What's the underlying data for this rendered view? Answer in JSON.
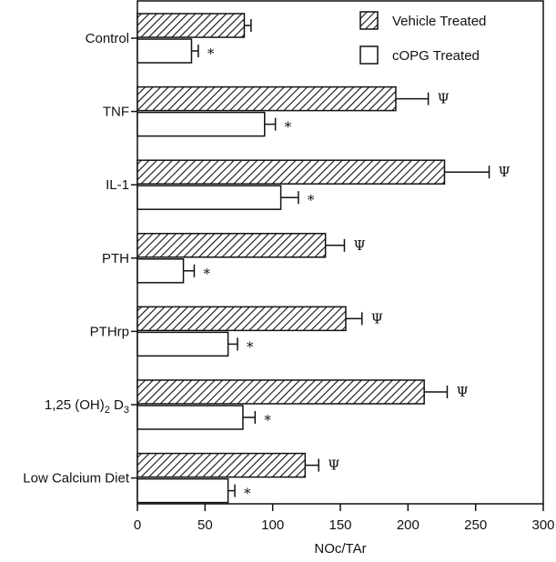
{
  "chart_data": {
    "type": "bar",
    "orientation": "horizontal",
    "categories": [
      "Control",
      "TNF",
      "IL-1",
      "PTH",
      "PTHrp",
      "1,25 (OH)2 D3",
      "Low Calcium Diet"
    ],
    "category_parts": {
      "5": {
        "main": "1,25 (OH)",
        "sub1": "2",
        "mid": " D",
        "sub2": "3"
      }
    },
    "series": [
      {
        "name": "Vehicle Treated",
        "fill": "hatched",
        "values": [
          79,
          191,
          227,
          139,
          154,
          212,
          124
        ],
        "errors": [
          5,
          24,
          33,
          14,
          12,
          17,
          10
        ],
        "markers": [
          "",
          "Ψ",
          "Ψ",
          "Ψ",
          "Ψ",
          "Ψ",
          "Ψ"
        ]
      },
      {
        "name": "cOPG Treated",
        "fill": "open",
        "values": [
          40,
          94,
          106,
          34,
          67,
          78,
          67
        ],
        "errors": [
          5,
          8,
          13,
          8,
          7,
          9,
          5
        ],
        "markers": [
          "*",
          "*",
          "*",
          "*",
          "*",
          "*",
          "*"
        ]
      }
    ],
    "xlabel": "NOc/TAr",
    "ylabel": "",
    "xlim": [
      0,
      300
    ],
    "xticks": [
      0,
      50,
      100,
      150,
      200,
      250,
      300
    ],
    "grid": false,
    "legend": "top-right"
  }
}
